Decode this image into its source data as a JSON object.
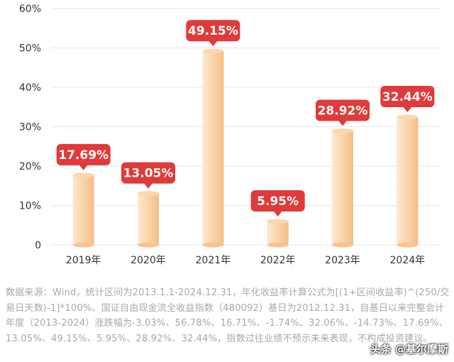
{
  "chart_data": {
    "type": "bar",
    "categories": [
      "2019年",
      "2020年",
      "2021年",
      "2022年",
      "2023年",
      "2024年"
    ],
    "values": [
      17.69,
      13.05,
      49.15,
      5.95,
      28.92,
      32.44
    ],
    "data_labels": [
      "17.69%",
      "13.05%",
      "49.15%",
      "5.95%",
      "28.92%",
      "32.44%"
    ],
    "yticks": [
      "0",
      "10%",
      "20%",
      "30%",
      "40%",
      "50%",
      "60%"
    ],
    "ylim": [
      0,
      60
    ],
    "grid": true,
    "title": "",
    "xlabel": "",
    "ylabel": "",
    "colors": {
      "bar_light": "#fde6cc",
      "bar_dark": "#f6c48f",
      "bar_top": "#fbd7ae",
      "label_box": "#e03a3a",
      "grid": "#e6e6e6"
    }
  },
  "footnote": "数据来源：Wind，统计区间为2013.1.1-2024.12.31，年化收益率计算公式为[(1+区间收益率)^(250/交易日天数)-1]*100%。国证自由现金流全收益指数（480092）基日为2012.12.31，自基日以来完整会计年度（2013-2024）涨跌幅为-3.03%、56.78%、16.71%、-1.74%、32.06%、-14.73%、17.69%、13.05%、49.15%、5.95%、28.92%、32.44%，指数过往业绩不预示未来表现，不构成投资建议。",
  "watermark": "头条 @基尔摩斯"
}
